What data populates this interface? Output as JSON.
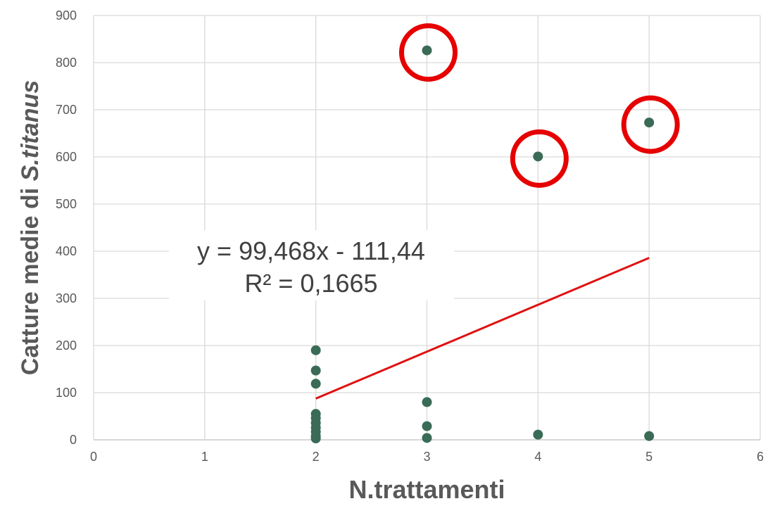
{
  "chart_data": {
    "type": "scatter",
    "title": "",
    "xlabel": "N.trattamenti",
    "ylabel_prefix": "Catture medie di ",
    "ylabel_species": "S.titanus",
    "xlim": [
      0,
      6
    ],
    "ylim": [
      0,
      900
    ],
    "x_ticks": [
      0,
      1,
      2,
      3,
      4,
      5,
      6
    ],
    "y_ticks": [
      0,
      100,
      200,
      300,
      400,
      500,
      600,
      700,
      800,
      900
    ],
    "grid": true,
    "point_color": "#3a6b56",
    "points": [
      {
        "x": 2,
        "y": 190
      },
      {
        "x": 2,
        "y": 147
      },
      {
        "x": 2,
        "y": 119
      },
      {
        "x": 2,
        "y": 55
      },
      {
        "x": 2,
        "y": 46
      },
      {
        "x": 2,
        "y": 36
      },
      {
        "x": 2,
        "y": 26
      },
      {
        "x": 2,
        "y": 17
      },
      {
        "x": 2,
        "y": 8
      },
      {
        "x": 2,
        "y": 3
      },
      {
        "x": 3,
        "y": 826
      },
      {
        "x": 3,
        "y": 80
      },
      {
        "x": 3,
        "y": 29
      },
      {
        "x": 3,
        "y": 4
      },
      {
        "x": 4,
        "y": 601
      },
      {
        "x": 4,
        "y": 11
      },
      {
        "x": 5,
        "y": 673
      },
      {
        "x": 5,
        "y": 8
      }
    ],
    "trendline": {
      "type": "linear",
      "slope": 99.468,
      "intercept": -111.44,
      "x_range": [
        2,
        5
      ],
      "color": "#e01010",
      "equation_label": "y = 99,468x - 111,44",
      "r2_label": "R² = 0,1665"
    },
    "highlights": [
      {
        "x": 3,
        "y": 826
      },
      {
        "x": 4,
        "y": 601
      },
      {
        "x": 5,
        "y": 673
      }
    ],
    "highlight_color": "#e60000"
  }
}
